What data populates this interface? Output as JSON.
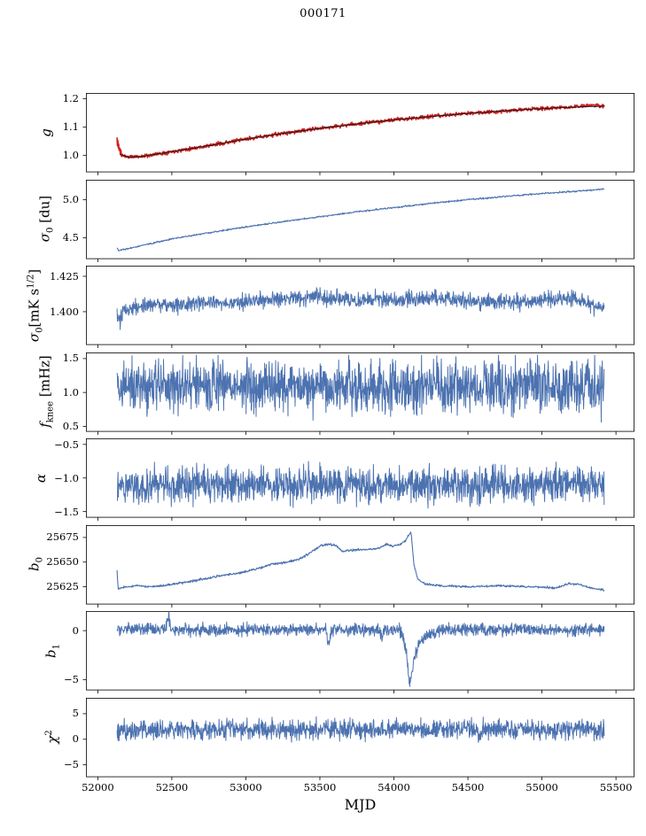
{
  "chart_data": {
    "type": "line",
    "title": "000171",
    "xlabel": "MJD",
    "xlim": [
      51920,
      55625
    ],
    "x_ticks": [
      52000,
      52500,
      53000,
      53500,
      54000,
      54500,
      55000,
      55500
    ],
    "grid": false,
    "legend": "none",
    "colors": {
      "series_blue": "#4c72b0",
      "data_red": "#cf2020",
      "fit_dark": "#1b1b1b",
      "axis": "#000000"
    },
    "panels": [
      {
        "name": "g",
        "ylabel": [
          [
            "g",
            "italic"
          ]
        ],
        "ylim": [
          0.94,
          1.22
        ],
        "yticks": [
          1.0,
          1.1,
          1.2
        ],
        "ytick_labels": [
          "1.0",
          "1.1",
          "1.2"
        ],
        "series": [
          {
            "name": "g-data",
            "color": "#cf2020",
            "width": 1.6,
            "n": 1200,
            "seed": 11,
            "noise": 0.0032,
            "keypoints": [
              [
                52130,
                1.062
              ],
              [
                52133,
                1.028
              ],
              [
                52136,
                1.06
              ],
              [
                52139,
                1.012
              ],
              [
                52142,
                1.052
              ],
              [
                52145,
                1.002
              ],
              [
                52148,
                1.038
              ],
              [
                52152,
                0.998
              ],
              [
                52156,
                1.028
              ],
              [
                52160,
                0.996
              ],
              [
                52170,
                1.0
              ],
              [
                52200,
                0.994
              ],
              [
                52300,
                0.996
              ],
              [
                52500,
                1.013
              ],
              [
                52750,
                1.034
              ],
              [
                53000,
                1.057
              ],
              [
                53250,
                1.077
              ],
              [
                53500,
                1.095
              ],
              [
                53750,
                1.111
              ],
              [
                54000,
                1.125
              ],
              [
                54250,
                1.137
              ],
              [
                54500,
                1.148
              ],
              [
                54750,
                1.157
              ],
              [
                55000,
                1.165
              ],
              [
                55250,
                1.172
              ],
              [
                55350,
                1.177
              ],
              [
                55420,
                1.174
              ]
            ]
          },
          {
            "name": "g-fit",
            "color": "#1b1b1b",
            "width": 1.0,
            "n": 400,
            "seed": 12,
            "noise": 0.0006,
            "keypoints": [
              [
                52150,
                1.004
              ],
              [
                52200,
                0.994
              ],
              [
                52300,
                0.996
              ],
              [
                52500,
                1.013
              ],
              [
                52750,
                1.034
              ],
              [
                53000,
                1.057
              ],
              [
                53250,
                1.077
              ],
              [
                53500,
                1.095
              ],
              [
                53750,
                1.111
              ],
              [
                54000,
                1.125
              ],
              [
                54250,
                1.137
              ],
              [
                54500,
                1.148
              ],
              [
                54750,
                1.157
              ],
              [
                55000,
                1.165
              ],
              [
                55250,
                1.171
              ],
              [
                55420,
                1.173
              ]
            ]
          }
        ]
      },
      {
        "name": "sigma0_du",
        "ylabel": [
          [
            "σ",
            "italic"
          ],
          [
            "0",
            "sub"
          ],
          [
            " [du]",
            "normal"
          ]
        ],
        "ylim": [
          4.22,
          5.26
        ],
        "yticks": [
          4.5,
          5.0
        ],
        "ytick_labels": [
          "4.5",
          "5.0"
        ],
        "series": [
          {
            "name": "sigma0-du",
            "color": "#4c72b0",
            "width": 1.1,
            "n": 1100,
            "seed": 21,
            "noise": 0.005,
            "keypoints": [
              [
                52130,
                4.37
              ],
              [
                52140,
                4.33
              ],
              [
                52170,
                4.345
              ],
              [
                52250,
                4.375
              ],
              [
                52350,
                4.42
              ],
              [
                52500,
                4.485
              ],
              [
                52750,
                4.565
              ],
              [
                53000,
                4.64
              ],
              [
                53250,
                4.71
              ],
              [
                53500,
                4.775
              ],
              [
                53750,
                4.84
              ],
              [
                54000,
                4.895
              ],
              [
                54250,
                4.95
              ],
              [
                54500,
                5.0
              ],
              [
                54750,
                5.04
              ],
              [
                55000,
                5.08
              ],
              [
                55200,
                5.105
              ],
              [
                55420,
                5.14
              ]
            ]
          }
        ]
      },
      {
        "name": "sigma0_mK",
        "ylabel": [
          [
            "σ",
            "italic"
          ],
          [
            "0",
            "sub"
          ],
          [
            "[mK s",
            "normal"
          ],
          [
            "1/2",
            "sup"
          ],
          [
            "]",
            "normal"
          ]
        ],
        "ylim": [
          1.3765,
          1.4325
        ],
        "yticks": [
          1.4,
          1.425
        ],
        "ytick_labels": [
          "1.400",
          "1.425"
        ],
        "series": [
          {
            "name": "sigma0-mk",
            "color": "#4c72b0",
            "width": 1.0,
            "n": 1400,
            "seed": 31,
            "noise": 0.0028,
            "keypoints": [
              [
                52130,
                1.398
              ],
              [
                52145,
                1.392
              ],
              [
                52175,
                1.4
              ],
              [
                52250,
                1.404
              ],
              [
                52400,
                1.406
              ],
              [
                52550,
                1.404
              ],
              [
                52700,
                1.406
              ],
              [
                52900,
                1.406
              ],
              [
                53100,
                1.408
              ],
              [
                53300,
                1.409
              ],
              [
                53500,
                1.41
              ],
              [
                53700,
                1.409
              ],
              [
                53900,
                1.408
              ],
              [
                54100,
                1.409
              ],
              [
                54300,
                1.41
              ],
              [
                54500,
                1.408
              ],
              [
                54700,
                1.407
              ],
              [
                54900,
                1.407
              ],
              [
                55050,
                1.409
              ],
              [
                55200,
                1.41
              ],
              [
                55300,
                1.407
              ],
              [
                55380,
                1.403
              ],
              [
                55420,
                1.404
              ]
            ]
          }
        ]
      },
      {
        "name": "f_knee",
        "ylabel": [
          [
            "f",
            "italic"
          ],
          [
            "knee",
            "sub"
          ],
          [
            " [mHz]",
            "normal"
          ]
        ],
        "ylim": [
          0.42,
          1.59
        ],
        "yticks": [
          0.5,
          1.0,
          1.5
        ],
        "ytick_labels": [
          "0.5",
          "1.0",
          "1.5"
        ],
        "series": [
          {
            "name": "fknee",
            "color": "#4c72b0",
            "width": 1.0,
            "n": 1500,
            "seed": 41,
            "noise": 0.19,
            "clip": [
              0.5,
              1.55
            ],
            "keypoints": [
              [
                52130,
                1.1
              ],
              [
                52400,
                1.08
              ],
              [
                52800,
                1.1
              ],
              [
                53200,
                1.09
              ],
              [
                53600,
                1.1
              ],
              [
                54000,
                1.08
              ],
              [
                54400,
                1.09
              ],
              [
                54800,
                1.07
              ],
              [
                55200,
                1.08
              ],
              [
                55420,
                1.06
              ]
            ]
          }
        ]
      },
      {
        "name": "alpha",
        "ylabel": [
          [
            "α",
            "italic"
          ]
        ],
        "ylim": [
          -1.59,
          -0.41
        ],
        "yticks": [
          -0.5,
          -1.0,
          -1.5
        ],
        "ytick_labels": [
          "−0.5",
          "−1.0",
          "−1.5"
        ],
        "series": [
          {
            "name": "alpha",
            "color": "#4c72b0",
            "width": 1.0,
            "n": 1500,
            "seed": 51,
            "noise": 0.13,
            "keypoints": [
              [
                52130,
                -1.11
              ],
              [
                52600,
                -1.1
              ],
              [
                53200,
                -1.11
              ],
              [
                53800,
                -1.1
              ],
              [
                54400,
                -1.11
              ],
              [
                55000,
                -1.1
              ],
              [
                55420,
                -1.11
              ]
            ]
          }
        ]
      },
      {
        "name": "b0",
        "ylabel": [
          [
            "b",
            "italic"
          ],
          [
            "0",
            "sub"
          ]
        ],
        "ylim": [
          25607,
          25687.5
        ],
        "yticks": [
          25625,
          25650,
          25675
        ],
        "ytick_labels": [
          "25625",
          "25650",
          "25675"
        ],
        "series": [
          {
            "name": "b0",
            "color": "#4c72b0",
            "width": 1.1,
            "n": 1200,
            "seed": 61,
            "noise": 0.55,
            "keypoints": [
              [
                52130,
                25641
              ],
              [
                52138,
                25622
              ],
              [
                52160,
                25624
              ],
              [
                52250,
                25626
              ],
              [
                52350,
                25625
              ],
              [
                52450,
                25626
              ],
              [
                52520,
                25628
              ],
              [
                52620,
                25630
              ],
              [
                52720,
                25633
              ],
              [
                52820,
                25636
              ],
              [
                52920,
                25638
              ],
              [
                53020,
                25641
              ],
              [
                53120,
                25645
              ],
              [
                53180,
                25648
              ],
              [
                53280,
                25650
              ],
              [
                53360,
                25653
              ],
              [
                53420,
                25658
              ],
              [
                53470,
                25663
              ],
              [
                53510,
                25667
              ],
              [
                53560,
                25668
              ],
              [
                53610,
                25667
              ],
              [
                53650,
                25661
              ],
              [
                53720,
                25662
              ],
              [
                53820,
                25663
              ],
              [
                53900,
                25664
              ],
              [
                53950,
                25668
              ],
              [
                54000,
                25666
              ],
              [
                54040,
                25668
              ],
              [
                54080,
                25672
              ],
              [
                54115,
                25681
              ],
              [
                54135,
                25648
              ],
              [
                54160,
                25633
              ],
              [
                54210,
                25628
              ],
              [
                54300,
                25626
              ],
              [
                54500,
                25625
              ],
              [
                54700,
                25626
              ],
              [
                54900,
                25625
              ],
              [
                55100,
                25624
              ],
              [
                55180,
                25628
              ],
              [
                55260,
                25627
              ],
              [
                55350,
                25623
              ],
              [
                55420,
                25622
              ]
            ]
          }
        ]
      },
      {
        "name": "b1",
        "ylabel": [
          [
            "b",
            "italic"
          ],
          [
            "1",
            "sub"
          ]
        ],
        "ylim": [
          -6.1,
          2.0
        ],
        "yticks": [
          -5,
          0
        ],
        "ytick_labels": [
          "−5",
          "0"
        ],
        "series": [
          {
            "name": "b1",
            "color": "#4c72b0",
            "width": 1.0,
            "n": 1500,
            "seed": 71,
            "noise": 0.3,
            "clip": [
              -6.0,
              1.95
            ],
            "keypoints": [
              [
                52130,
                0.15
              ],
              [
                52460,
                0.12
              ],
              [
                52478,
                1.6
              ],
              [
                52496,
                0.12
              ],
              [
                53540,
                0.1
              ],
              [
                53558,
                -1.4
              ],
              [
                53576,
                0.1
              ],
              [
                53900,
                0.1
              ],
              [
                53918,
                -0.9
              ],
              [
                53936,
                0.1
              ],
              [
                54040,
                0.1
              ],
              [
                54070,
                -1.2
              ],
              [
                54090,
                -3.0
              ],
              [
                54105,
                -5.6
              ],
              [
                54120,
                -4.2
              ],
              [
                54140,
                -2.6
              ],
              [
                54170,
                -1.4
              ],
              [
                54220,
                -0.6
              ],
              [
                54300,
                -0.1
              ],
              [
                54330,
                0.12
              ],
              [
                55420,
                0.1
              ]
            ]
          }
        ]
      },
      {
        "name": "chi2",
        "ylabel": [
          [
            "χ",
            "italic"
          ],
          [
            "2",
            "sup"
          ]
        ],
        "ylim": [
          -7.4,
          8.1
        ],
        "yticks": [
          -5,
          0,
          5
        ],
        "ytick_labels": [
          "−5",
          "0",
          "5"
        ],
        "series": [
          {
            "name": "chi2",
            "color": "#4c72b0",
            "width": 1.0,
            "n": 1500,
            "seed": 81,
            "noise": 0.95,
            "keypoints": [
              [
                52130,
                1.7
              ],
              [
                52800,
                1.9
              ],
              [
                53500,
                1.8
              ],
              [
                54200,
                1.9
              ],
              [
                54900,
                1.8
              ],
              [
                55420,
                1.9
              ]
            ]
          }
        ]
      }
    ]
  }
}
